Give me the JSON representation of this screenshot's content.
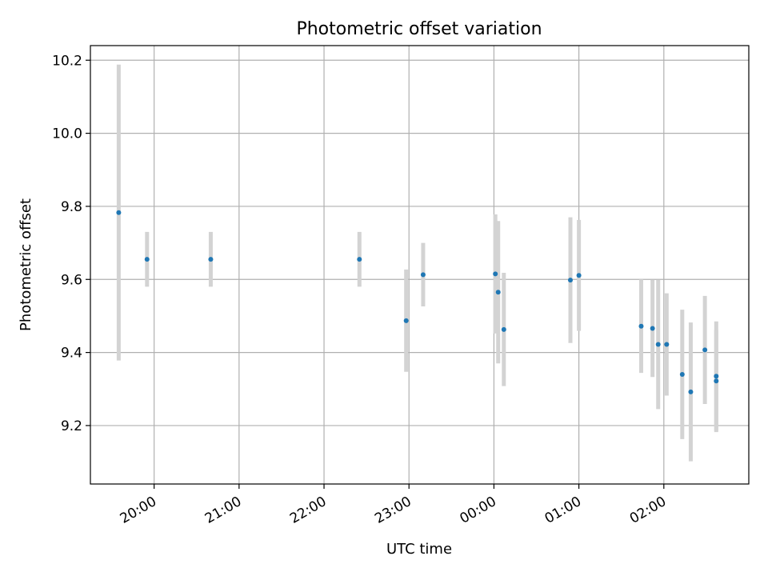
{
  "chart_data": {
    "type": "scatter",
    "title": "Photometric offset variation",
    "xlabel": "UTC time",
    "ylabel": "Photometric offset",
    "xlim": [
      "19:15",
      "03:00"
    ],
    "ylim": [
      9.04,
      10.24
    ],
    "grid": true,
    "x_ticks": [
      "20:00",
      "21:00",
      "22:00",
      "23:00",
      "00:00",
      "01:00",
      "02:00"
    ],
    "y_ticks": [
      "9.2",
      "9.4",
      "9.6",
      "9.8",
      "10.0",
      "10.2"
    ],
    "colors": {
      "marker": "#1f77b4",
      "errorbar": "#d3d3d3",
      "grid": "#b0b0b0"
    },
    "series": [
      {
        "points": [
          {
            "t": "19:35",
            "y": 9.783,
            "err": 0.405
          },
          {
            "t": "19:55",
            "y": 9.655,
            "err": 0.075
          },
          {
            "t": "20:40",
            "y": 9.655,
            "err": 0.075
          },
          {
            "t": "22:25",
            "y": 9.655,
            "err": 0.075
          },
          {
            "t": "22:58",
            "y": 9.487,
            "err": 0.14
          },
          {
            "t": "23:10",
            "y": 9.613,
            "err": 0.087
          },
          {
            "t": "00:01",
            "y": 9.615,
            "err": 0.163
          },
          {
            "t": "00:03",
            "y": 9.565,
            "err": 0.195
          },
          {
            "t": "00:07",
            "y": 9.463,
            "err": 0.155
          },
          {
            "t": "00:54",
            "y": 9.598,
            "err": 0.172
          },
          {
            "t": "01:00",
            "y": 9.611,
            "err": 0.152
          },
          {
            "t": "01:44",
            "y": 9.472,
            "err": 0.128
          },
          {
            "t": "01:52",
            "y": 9.466,
            "err": 0.133
          },
          {
            "t": "01:56",
            "y": 9.422,
            "err": 0.177
          },
          {
            "t": "02:02",
            "y": 9.422,
            "err": 0.14
          },
          {
            "t": "02:13",
            "y": 9.34,
            "err": 0.177
          },
          {
            "t": "02:19",
            "y": 9.292,
            "err": 0.19
          },
          {
            "t": "02:29",
            "y": 9.407,
            "err": 0.148
          },
          {
            "t": "02:37",
            "y": 9.335,
            "err": 0.15
          },
          {
            "t": "02:37",
            "y": 9.322,
            "err": 0.14
          }
        ]
      }
    ]
  }
}
